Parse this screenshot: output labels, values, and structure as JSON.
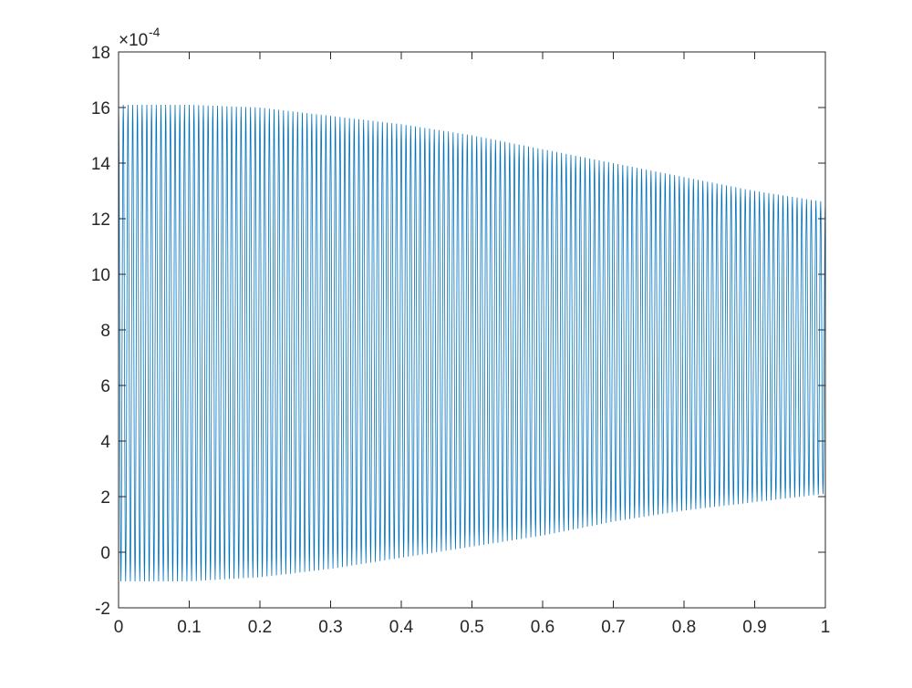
{
  "chart_data": {
    "type": "line",
    "title": "",
    "xlabel": "",
    "ylabel": "",
    "xlim": [
      0,
      1
    ],
    "ylim": [
      -2,
      18
    ],
    "y_exponent_label": {
      "base": "×10",
      "exponent": "-4"
    },
    "x_ticks": [
      "0",
      "0.1",
      "0.2",
      "0.3",
      "0.4",
      "0.5",
      "0.6",
      "0.7",
      "0.8",
      "0.9",
      "1"
    ],
    "y_ticks": [
      "-2",
      "0",
      "2",
      "4",
      "6",
      "8",
      "10",
      "12",
      "14",
      "16",
      "18"
    ],
    "grid": false,
    "box": true,
    "line_color": "#0072BD",
    "series": [
      {
        "cycles_over_range": 150,
        "envelope_x": [
          0,
          0.1,
          0.2,
          0.3,
          0.4,
          0.5,
          0.6,
          0.7,
          0.8,
          0.9,
          1
        ],
        "upper_envelope": [
          16.1,
          16.1,
          16.0,
          15.7,
          15.4,
          15.0,
          14.5,
          14.0,
          13.5,
          13.0,
          12.6
        ],
        "lower_envelope": [
          -1.05,
          -1.05,
          -0.9,
          -0.6,
          -0.2,
          0.2,
          0.6,
          1.1,
          1.5,
          1.8,
          2.1
        ]
      }
    ]
  }
}
